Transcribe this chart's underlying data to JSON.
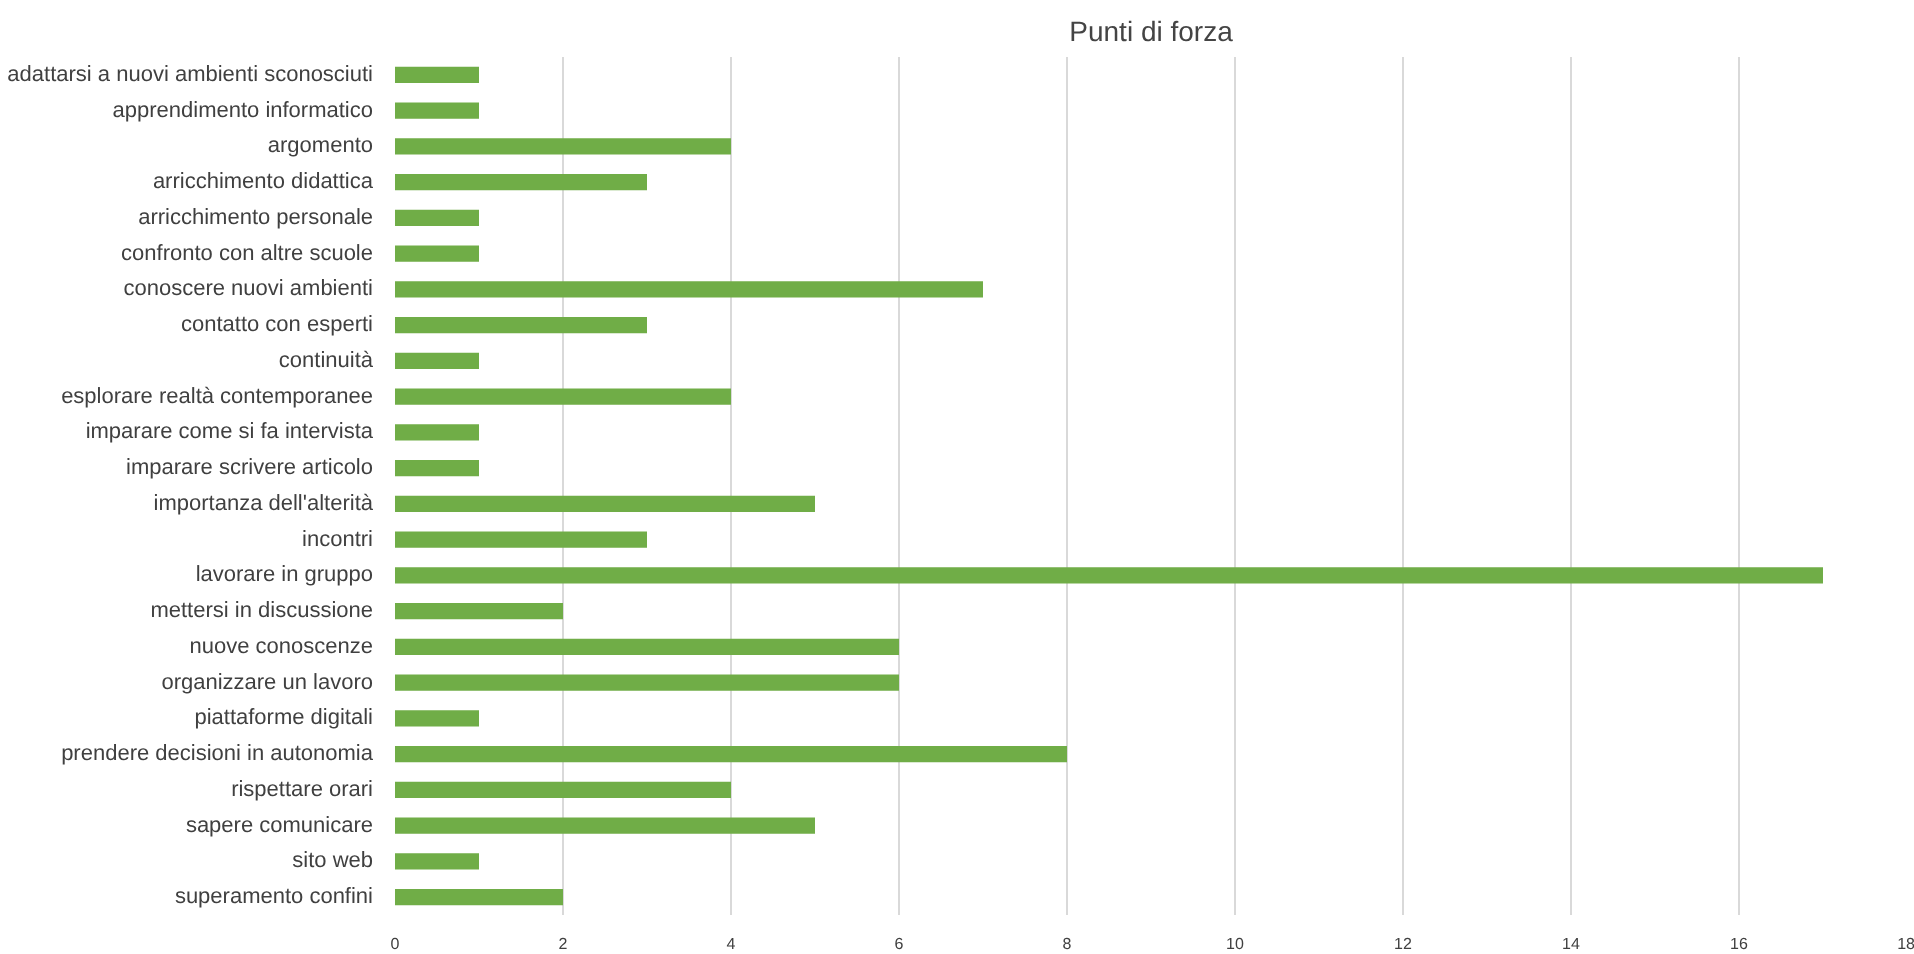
{
  "chart_data": {
    "type": "bar",
    "orientation": "horizontal",
    "title": "Punti di forza",
    "categories": [
      "adattarsi a nuovi ambienti sconosciuti",
      "apprendimento informatico",
      "argomento",
      "arricchimento didattica",
      "arricchimento personale",
      "confronto con altre scuole",
      "conoscere nuovi ambienti",
      "contatto con esperti",
      "continuità",
      "esplorare realtà contemporanee",
      "imparare come si fa intervista",
      "imparare scrivere articolo",
      "importanza dell'alterità",
      "incontri",
      "lavorare in gruppo",
      "mettersi in discussione",
      "nuove conoscenze",
      "organizzare un lavoro",
      "piattaforme digitali",
      "prendere decisioni in autonomia",
      "rispettare orari",
      "sapere comunicare",
      "sito web",
      "superamento confini"
    ],
    "values": [
      1,
      1,
      4,
      3,
      1,
      1,
      7,
      3,
      1,
      4,
      1,
      1,
      5,
      3,
      17,
      2,
      6,
      6,
      1,
      8,
      4,
      5,
      1,
      2
    ],
    "color": "#70ad47",
    "xlim": [
      0,
      18
    ],
    "xticks": [
      0,
      2,
      4,
      6,
      8,
      10,
      12,
      14,
      16,
      18
    ],
    "grid": "x"
  }
}
